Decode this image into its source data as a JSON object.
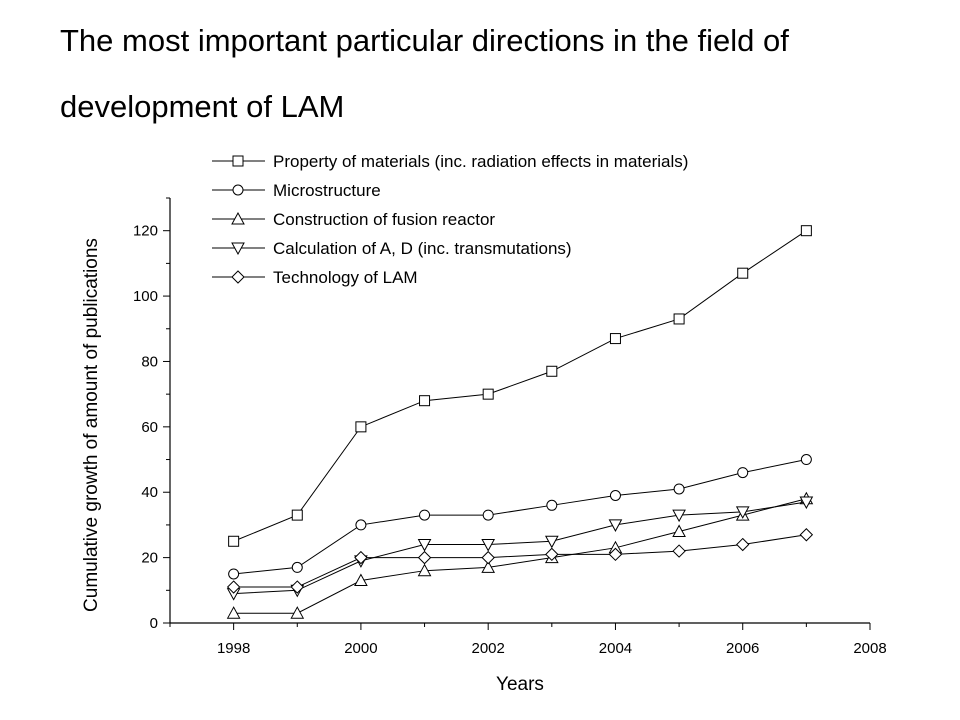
{
  "slide": {
    "title": "The most important particular directions in the field of development of LAM"
  },
  "chart_data": {
    "type": "line",
    "xlabel": "Years",
    "ylabel": "Cumulative growth of amount of publications",
    "xlim": [
      1997,
      2008
    ],
    "ylim": [
      0,
      130
    ],
    "x_ticks": [
      1998,
      2000,
      2002,
      2004,
      2006,
      2008
    ],
    "y_ticks": [
      0,
      20,
      40,
      60,
      80,
      100,
      120
    ],
    "grid": false,
    "legend_position": "top-left",
    "x": [
      1998,
      1999,
      2000,
      2001,
      2002,
      2003,
      2004,
      2005,
      2006,
      2007
    ],
    "series": [
      {
        "name": "Property of materials (inc. radiation effects in materials)",
        "marker": "square",
        "values": [
          25,
          33,
          60,
          68,
          70,
          77,
          87,
          93,
          107,
          120
        ]
      },
      {
        "name": "Microstructure",
        "marker": "circle",
        "values": [
          15,
          17,
          30,
          33,
          33,
          36,
          39,
          41,
          46,
          50
        ]
      },
      {
        "name": "Construction of fusion reactor",
        "marker": "triangle-up",
        "values": [
          3,
          3,
          13,
          16,
          17,
          20,
          23,
          28,
          33,
          38
        ]
      },
      {
        "name": "Calculation of A, D (inc. transmutations)",
        "marker": "triangle-down",
        "values": [
          9,
          10,
          19,
          24,
          24,
          25,
          30,
          33,
          34,
          37
        ]
      },
      {
        "name": "Technology of LAM",
        "marker": "diamond",
        "values": [
          11,
          11,
          20,
          20,
          20,
          21,
          21,
          22,
          24,
          27
        ]
      }
    ],
    "colors": {
      "line": "#000000",
      "marker_fill": "#ffffff",
      "background": "#ffffff"
    }
  }
}
